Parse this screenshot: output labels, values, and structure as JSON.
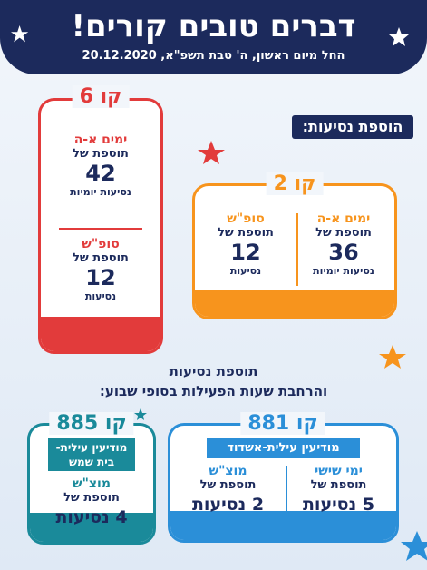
{
  "header": {
    "title": "דברים טובים קורים!",
    "subtitle": "החל מיום ראשון, ה' טבת תשפ\"א, 20.12.2020"
  },
  "section_heading": "הוספת נסיעות:",
  "line6": {
    "title": "קו 6",
    "blocks": [
      {
        "days": "ימים א-ה",
        "prefix": "תוספת של",
        "count": "42",
        "unit": "נסיעות יומיות"
      },
      {
        "days": "סופ\"ש",
        "prefix": "תוספת של",
        "count": "12",
        "unit": "נסיעות"
      }
    ]
  },
  "line2": {
    "title": "קו 2",
    "blocks": [
      {
        "days": "ימים א-ה",
        "prefix": "תוספת של",
        "count": "36",
        "unit": "נסיעות יומיות"
      },
      {
        "days": "סופ\"ש",
        "prefix": "תוספת של",
        "count": "12",
        "unit": "נסיעות"
      }
    ]
  },
  "middle_text": [
    "תוספת נסיעות",
    "והרחבת שעות הפעילות בסופי שבוע:"
  ],
  "line881": {
    "title": "קו 881",
    "route": "מודיעין עילית-אשדוד",
    "blocks": [
      {
        "days": "ימי שישי",
        "prefix": "תוספת של",
        "count": "5 נסיעות"
      },
      {
        "days": "מוצ\"ש",
        "prefix": "תוספת של",
        "count": "2 נסיעות"
      }
    ]
  },
  "line885": {
    "title": "קו 885",
    "route": [
      "מודיעין עילית-",
      "בית שמש"
    ],
    "blocks": [
      {
        "days": "מוצ\"ש",
        "prefix": "תוספת של",
        "count": "4 נסיעות"
      }
    ]
  }
}
